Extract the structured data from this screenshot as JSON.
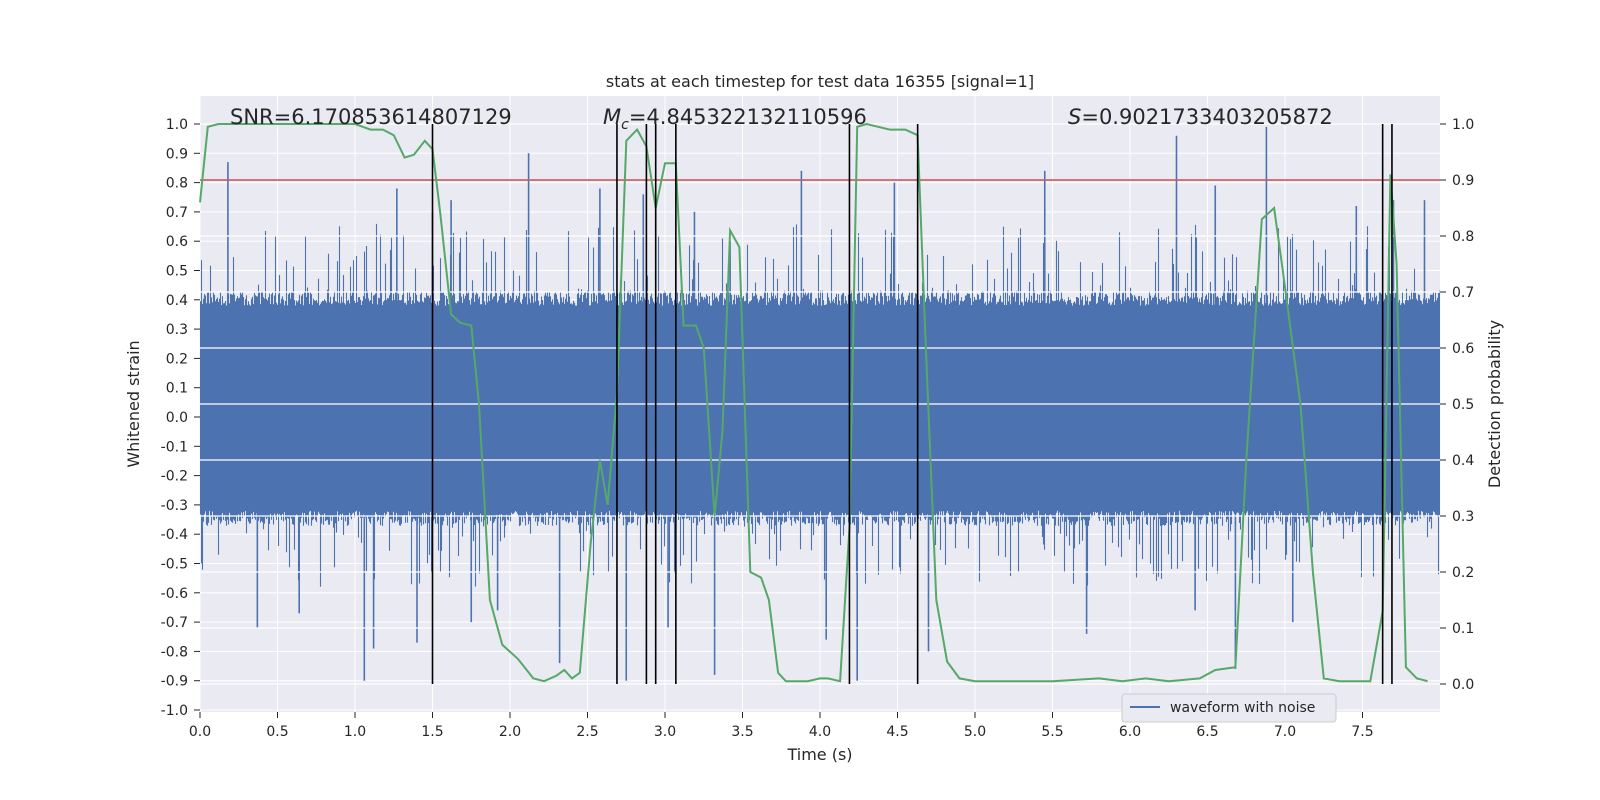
{
  "chart_data": {
    "type": "line",
    "title": "stats at each timestep for test data 16355 [signal=1]",
    "xlabel": "Time (s)",
    "ylabel": "Whitened strain",
    "y2label": "Detection probability",
    "xlim": [
      0.0,
      8.0
    ],
    "ylim": [
      -1.0,
      1.0
    ],
    "y2lim": [
      0.0,
      1.0
    ],
    "x_ticks": [
      "0.0",
      "0.5",
      "1.0",
      "1.5",
      "2.0",
      "2.5",
      "3.0",
      "3.5",
      "4.0",
      "4.5",
      "5.0",
      "5.5",
      "6.0",
      "6.5",
      "7.0",
      "7.5"
    ],
    "y_ticks": [
      "1.0",
      "0.9",
      "0.8",
      "0.7",
      "0.6",
      "0.5",
      "0.4",
      "0.3",
      "0.2",
      "0.1",
      "0.0",
      "-0.1",
      "-0.2",
      "-0.3",
      "-0.4",
      "-0.5",
      "-0.6",
      "-0.7",
      "-0.8",
      "-0.9",
      "-1.0"
    ],
    "y2_ticks": [
      "1.0",
      "0.9",
      "0.8",
      "0.7",
      "0.6",
      "0.5",
      "0.4",
      "0.3",
      "0.2",
      "0.1",
      "0.0"
    ],
    "grid": true,
    "legend": {
      "entries": [
        "waveform with noise"
      ],
      "placement": "bottom-right"
    },
    "annotations": {
      "snr": {
        "prefix": "SNR",
        "value": "=6.170853614807129"
      },
      "mc": {
        "symbol": "M",
        "subscript": "c",
        "value": "=4.845322132110596"
      },
      "s": {
        "symbol": "S",
        "value": "=0.9021733403205872"
      }
    },
    "threshold": {
      "y2": 0.9,
      "color": "#c44e52"
    },
    "vertical_markers": [
      1.5,
      2.69,
      2.88,
      2.94,
      3.07,
      4.19,
      4.63,
      7.63,
      7.69
    ],
    "series": [
      {
        "name": "waveform with noise",
        "kind": "strain",
        "color": "#4c72b0",
        "typical_envelope": [
          -0.35,
          0.42
        ],
        "peak_spikes": [
          {
            "x": 0.18,
            "y": 0.87
          },
          {
            "x": 0.37,
            "y": -0.72
          },
          {
            "x": 0.64,
            "y": -0.67
          },
          {
            "x": 1.06,
            "y": -0.9
          },
          {
            "x": 1.12,
            "y": -0.79
          },
          {
            "x": 1.27,
            "y": 0.78
          },
          {
            "x": 1.4,
            "y": -0.77
          },
          {
            "x": 1.5,
            "y": 0.7
          },
          {
            "x": 1.62,
            "y": 0.74
          },
          {
            "x": 1.75,
            "y": -0.7
          },
          {
            "x": 1.92,
            "y": -0.66
          },
          {
            "x": 2.12,
            "y": 0.9
          },
          {
            "x": 2.32,
            "y": -0.84
          },
          {
            "x": 2.58,
            "y": 0.78
          },
          {
            "x": 2.75,
            "y": -0.9
          },
          {
            "x": 2.86,
            "y": 0.76
          },
          {
            "x": 3.02,
            "y": -0.72
          },
          {
            "x": 3.19,
            "y": 0.7
          },
          {
            "x": 3.32,
            "y": -0.88
          },
          {
            "x": 3.42,
            "y": 0.6
          },
          {
            "x": 3.88,
            "y": 0.84
          },
          {
            "x": 4.04,
            "y": -0.76
          },
          {
            "x": 4.24,
            "y": -0.9
          },
          {
            "x": 4.48,
            "y": 0.8
          },
          {
            "x": 4.7,
            "y": -0.8
          },
          {
            "x": 5.45,
            "y": 0.84
          },
          {
            "x": 5.72,
            "y": -0.74
          },
          {
            "x": 6.3,
            "y": 0.96
          },
          {
            "x": 6.42,
            "y": -0.66
          },
          {
            "x": 6.55,
            "y": 0.79
          },
          {
            "x": 6.68,
            "y": -0.86
          },
          {
            "x": 6.88,
            "y": 0.99
          },
          {
            "x": 7.05,
            "y": -0.7
          },
          {
            "x": 7.46,
            "y": 0.72
          },
          {
            "x": 7.7,
            "y": 0.74
          },
          {
            "x": 7.9,
            "y": 0.74
          }
        ]
      },
      {
        "name": "",
        "kind": "detection_probability",
        "color": "#55a868",
        "points": [
          [
            0.0,
            0.86
          ],
          [
            0.05,
            0.995
          ],
          [
            0.12,
            1.0
          ],
          [
            0.5,
            1.0
          ],
          [
            1.0,
            1.0
          ],
          [
            1.1,
            0.99
          ],
          [
            1.18,
            0.99
          ],
          [
            1.25,
            0.98
          ],
          [
            1.32,
            0.94
          ],
          [
            1.38,
            0.945
          ],
          [
            1.45,
            0.97
          ],
          [
            1.5,
            0.955
          ],
          [
            1.55,
            0.84
          ],
          [
            1.62,
            0.66
          ],
          [
            1.68,
            0.645
          ],
          [
            1.75,
            0.64
          ],
          [
            1.8,
            0.5
          ],
          [
            1.87,
            0.15
          ],
          [
            1.95,
            0.07
          ],
          [
            2.05,
            0.045
          ],
          [
            2.15,
            0.01
          ],
          [
            2.22,
            0.005
          ],
          [
            2.3,
            0.015
          ],
          [
            2.35,
            0.025
          ],
          [
            2.4,
            0.01
          ],
          [
            2.45,
            0.02
          ],
          [
            2.52,
            0.25
          ],
          [
            2.58,
            0.4
          ],
          [
            2.63,
            0.32
          ],
          [
            2.69,
            0.52
          ],
          [
            2.75,
            0.97
          ],
          [
            2.82,
            0.99
          ],
          [
            2.88,
            0.96
          ],
          [
            2.94,
            0.85
          ],
          [
            3.0,
            0.93
          ],
          [
            3.07,
            0.93
          ],
          [
            3.12,
            0.64
          ],
          [
            3.2,
            0.64
          ],
          [
            3.25,
            0.6
          ],
          [
            3.32,
            0.3
          ],
          [
            3.37,
            0.45
          ],
          [
            3.42,
            0.81
          ],
          [
            3.48,
            0.78
          ],
          [
            3.55,
            0.2
          ],
          [
            3.62,
            0.19
          ],
          [
            3.67,
            0.15
          ],
          [
            3.73,
            0.02
          ],
          [
            3.78,
            0.005
          ],
          [
            3.92,
            0.005
          ],
          [
            4.0,
            0.01
          ],
          [
            4.05,
            0.01
          ],
          [
            4.13,
            0.005
          ],
          [
            4.19,
            0.28
          ],
          [
            4.24,
            0.995
          ],
          [
            4.3,
            1.0
          ],
          [
            4.45,
            0.99
          ],
          [
            4.55,
            0.99
          ],
          [
            4.63,
            0.98
          ],
          [
            4.68,
            0.62
          ],
          [
            4.75,
            0.15
          ],
          [
            4.82,
            0.04
          ],
          [
            4.9,
            0.01
          ],
          [
            5.0,
            0.005
          ],
          [
            5.2,
            0.005
          ],
          [
            5.5,
            0.005
          ],
          [
            5.8,
            0.01
          ],
          [
            5.95,
            0.005
          ],
          [
            6.1,
            0.01
          ],
          [
            6.25,
            0.005
          ],
          [
            6.45,
            0.01
          ],
          [
            6.55,
            0.025
          ],
          [
            6.68,
            0.03
          ],
          [
            6.75,
            0.4
          ],
          [
            6.85,
            0.83
          ],
          [
            6.93,
            0.85
          ],
          [
            6.98,
            0.75
          ],
          [
            7.1,
            0.5
          ],
          [
            7.18,
            0.2
          ],
          [
            7.25,
            0.01
          ],
          [
            7.35,
            0.005
          ],
          [
            7.55,
            0.005
          ],
          [
            7.63,
            0.13
          ],
          [
            7.68,
            0.91
          ],
          [
            7.72,
            0.75
          ],
          [
            7.78,
            0.03
          ],
          [
            7.85,
            0.01
          ],
          [
            7.92,
            0.005
          ]
        ]
      }
    ]
  }
}
